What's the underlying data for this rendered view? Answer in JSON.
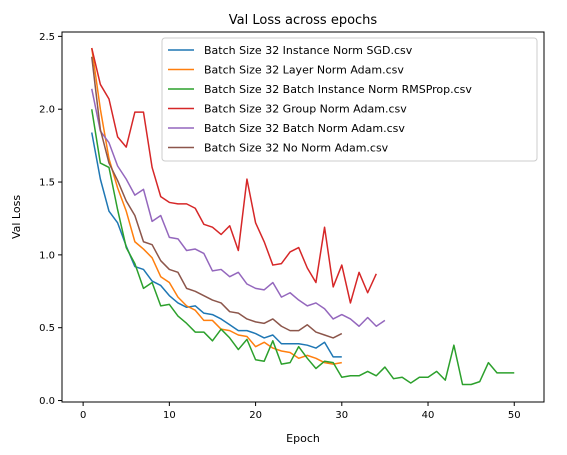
{
  "chart_data": {
    "type": "line",
    "title": "Val Loss across epochs",
    "xlabel": "Epoch",
    "ylabel": "Val Loss",
    "xlim": [
      -2.45,
      53.45
    ],
    "ylim": [
      -0.01,
      2.53
    ],
    "xticks": [
      0,
      10,
      20,
      30,
      40,
      50
    ],
    "yticks": [
      0.0,
      0.5,
      1.0,
      1.5,
      2.0,
      2.5
    ],
    "grid": false,
    "legend_position": "top-right",
    "series": [
      {
        "name": "Batch Size 32 Instance Norm SGD.csv",
        "color": "#1f77b4",
        "x": [
          1,
          2,
          3,
          4,
          5,
          6,
          7,
          8,
          9,
          10,
          11,
          12,
          13,
          14,
          15,
          16,
          17,
          18,
          19,
          20,
          21,
          22,
          23,
          24,
          25,
          26,
          27,
          28,
          29,
          30
        ],
        "values": [
          1.84,
          1.52,
          1.3,
          1.22,
          1.06,
          0.92,
          0.9,
          0.82,
          0.79,
          0.72,
          0.67,
          0.64,
          0.65,
          0.6,
          0.59,
          0.56,
          0.52,
          0.48,
          0.48,
          0.46,
          0.43,
          0.45,
          0.39,
          0.39,
          0.39,
          0.38,
          0.36,
          0.4,
          0.3,
          0.3
        ]
      },
      {
        "name": "Batch Size 32 Layer Norm Adam.csv",
        "color": "#ff7f0e",
        "x": [
          1,
          2,
          3,
          4,
          5,
          6,
          7,
          8,
          9,
          10,
          11,
          12,
          13,
          14,
          15,
          16,
          17,
          18,
          19,
          20,
          21,
          22,
          23,
          24,
          25,
          26,
          27,
          28,
          29,
          30
        ],
        "values": [
          2.42,
          2.0,
          1.66,
          1.46,
          1.3,
          1.09,
          1.04,
          0.98,
          0.85,
          0.81,
          0.71,
          0.65,
          0.62,
          0.55,
          0.55,
          0.49,
          0.48,
          0.45,
          0.44,
          0.37,
          0.4,
          0.36,
          0.34,
          0.33,
          0.29,
          0.31,
          0.29,
          0.26,
          0.25,
          0.26
        ]
      },
      {
        "name": "Batch Size 32 Batch Instance Norm RMSProp.csv",
        "color": "#2ca02c",
        "x": [
          1,
          2,
          3,
          4,
          5,
          6,
          7,
          8,
          9,
          10,
          11,
          12,
          13,
          14,
          15,
          16,
          17,
          18,
          19,
          20,
          21,
          22,
          23,
          24,
          25,
          26,
          27,
          28,
          29,
          30,
          31,
          32,
          33,
          34,
          35,
          36,
          37,
          38,
          39,
          40,
          41,
          42,
          43,
          44,
          45,
          46,
          47,
          48,
          49,
          50
        ],
        "values": [
          2.0,
          1.63,
          1.6,
          1.31,
          1.05,
          0.94,
          0.77,
          0.81,
          0.65,
          0.66,
          0.58,
          0.53,
          0.47,
          0.47,
          0.41,
          0.49,
          0.43,
          0.35,
          0.42,
          0.28,
          0.27,
          0.41,
          0.25,
          0.26,
          0.37,
          0.29,
          0.22,
          0.27,
          0.26,
          0.16,
          0.17,
          0.17,
          0.2,
          0.17,
          0.23,
          0.15,
          0.16,
          0.12,
          0.16,
          0.16,
          0.2,
          0.14,
          0.38,
          0.11,
          0.11,
          0.13,
          0.26,
          0.19,
          0.19,
          0.19
        ]
      },
      {
        "name": "Batch Size 32 Group Norm Adam.csv",
        "color": "#d62728",
        "x": [
          1,
          2,
          3,
          4,
          5,
          6,
          7,
          8,
          9,
          10,
          11,
          12,
          13,
          14,
          15,
          16,
          17,
          18,
          19,
          20,
          21,
          22,
          23,
          24,
          25,
          26,
          27,
          28,
          29,
          30,
          31,
          32,
          33,
          34
        ],
        "values": [
          2.42,
          2.17,
          2.07,
          1.81,
          1.74,
          1.98,
          1.98,
          1.6,
          1.4,
          1.36,
          1.35,
          1.35,
          1.32,
          1.21,
          1.19,
          1.14,
          1.2,
          1.03,
          1.52,
          1.22,
          1.09,
          0.93,
          0.94,
          1.02,
          1.05,
          0.91,
          0.81,
          1.19,
          0.78,
          0.93,
          0.67,
          0.88,
          0.74,
          0.87
        ]
      },
      {
        "name": "Batch Size 32 Batch Norm Adam.csv",
        "color": "#9467bd",
        "x": [
          1,
          2,
          3,
          4,
          5,
          6,
          7,
          8,
          9,
          10,
          11,
          12,
          13,
          14,
          15,
          16,
          17,
          18,
          19,
          20,
          21,
          22,
          23,
          24,
          25,
          26,
          27,
          28,
          29,
          30,
          31,
          32,
          33,
          34,
          35
        ],
        "values": [
          2.14,
          1.85,
          1.77,
          1.61,
          1.52,
          1.41,
          1.45,
          1.23,
          1.27,
          1.12,
          1.11,
          1.03,
          1.04,
          1.01,
          0.89,
          0.9,
          0.85,
          0.88,
          0.8,
          0.77,
          0.76,
          0.81,
          0.71,
          0.74,
          0.69,
          0.65,
          0.67,
          0.63,
          0.56,
          0.59,
          0.56,
          0.51,
          0.57,
          0.51,
          0.55
        ]
      },
      {
        "name": "Batch Size 32 No Norm Adam.csv",
        "color": "#8c564b",
        "x": [
          1,
          2,
          3,
          4,
          5,
          6,
          7,
          8,
          9,
          10,
          11,
          12,
          13,
          14,
          15,
          16,
          17,
          18,
          19,
          20,
          21,
          22,
          23,
          24,
          25,
          26,
          27,
          28,
          29,
          30
        ],
        "values": [
          2.36,
          1.86,
          1.63,
          1.51,
          1.37,
          1.27,
          1.09,
          1.07,
          0.96,
          0.9,
          0.88,
          0.77,
          0.75,
          0.72,
          0.69,
          0.67,
          0.61,
          0.6,
          0.56,
          0.54,
          0.53,
          0.56,
          0.51,
          0.48,
          0.48,
          0.52,
          0.47,
          0.45,
          0.43,
          0.46
        ]
      }
    ]
  }
}
